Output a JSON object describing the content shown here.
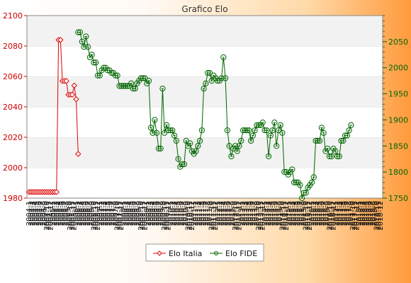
{
  "chart_data": {
    "type": "line",
    "title": "Grafico Elo",
    "xlabel": "",
    "ylabel_left": "",
    "ylabel_right": "",
    "left_axis": {
      "ylim": [
        1980,
        2100
      ],
      "ticks": [
        1980,
        2000,
        2020,
        2040,
        2060,
        2080,
        2100
      ],
      "color": "#cc0000"
    },
    "right_axis": {
      "ylim": [
        1750,
        2100
      ],
      "ticks": [
        1750,
        1800,
        1850,
        1900,
        1950,
        2000,
        2050
      ],
      "color": "#006600"
    },
    "grid": "horizontal bands",
    "legend_position": "bottom",
    "x_tick_labels": [
      "2004-1",
      "2004-2",
      "2004-3",
      "2004-4",
      "2004-5",
      "2004-6",
      "2004-7",
      "2004-8",
      "2004-9",
      "2004-10",
      "2004-11",
      "2004-12",
      "2005-1",
      "2005-2",
      "2005-3",
      "2005-4",
      "2005-5",
      "2005-6",
      "2005-7",
      "2005-8",
      "2005-9",
      "2005-10",
      "2005-11",
      "2005-12",
      "2006-1",
      "2006-2",
      "2006-3",
      "2006-4",
      "2006-5",
      "2006-6",
      "2006-7",
      "2006-8",
      "2006-9",
      "2006-10",
      "2006-11",
      "2006-12",
      "2007-1",
      "2007-2",
      "2007-3",
      "2007-4",
      "2007-5",
      "2007-6",
      "2007-7",
      "2007-8",
      "2007-9",
      "2007-10",
      "2007-11",
      "2007-12",
      "2008-1",
      "2008-2",
      "2008-3",
      "2008-4",
      "2008-5",
      "2008-6",
      "2008-7",
      "2008-8",
      "2008-9",
      "2008-10",
      "2008-11",
      "2008-12",
      "2009-1",
      "2009-2",
      "2009-3",
      "2009-4",
      "2009-5",
      "2009-6",
      "2009-7",
      "2009-8",
      "2009-9",
      "2009-10",
      "2009-11",
      "2009-12",
      "2010-1",
      "2010-2",
      "2010-3",
      "2010-4",
      "2010-5",
      "2010-6",
      "2010-7",
      "2010-8",
      "2010-9",
      "2010-10",
      "2010-11",
      "2010-12",
      "2011-1",
      "2011-2",
      "2011-3",
      "2011-4",
      "2011-5",
      "2011-6",
      "2011-7",
      "2011-8",
      "2011-9",
      "2011-10",
      "2011-11",
      "2011-12",
      "2012-1",
      "2012-2",
      "2012-3",
      "2012-4",
      "2012-5",
      "2012-6",
      "2012-7",
      "2012-8",
      "2012-9",
      "2012-10",
      "2012-11",
      "2012-12",
      "2013-1",
      "2013-2",
      "2013-3",
      "2013-4",
      "2013-5",
      "2013-6",
      "2013-7",
      "2013-8",
      "2013-9",
      "2013-10",
      "2013-11",
      "2013-12",
      "2014-1",
      "2014-2",
      "2014-3",
      "2014-4",
      "2014-5",
      "2014-6",
      "2014-7",
      "2014-8",
      "2014-9",
      "2014-10",
      "2014-11",
      "2014-12",
      "2015-1",
      "2015-2",
      "2015-3",
      "2015-4",
      "2015-5",
      "2015-6",
      "2015-7",
      "2015-8",
      "2015-9",
      "2015-10",
      "2015-11",
      "2015-12",
      "2016-1",
      "2016-2",
      "2016-3",
      "2016-4",
      "2016-5",
      "2016-6",
      "2016-7",
      "2016-8",
      "2016-9",
      "2016-10",
      "2016-11",
      "2016-12",
      "2017-1",
      "2017-2",
      "2017-3",
      "2017-4",
      "2017-5",
      "2017-6",
      "2017-7",
      "2017-8",
      "2017-9",
      "2017-10",
      "2017-11",
      "2017-12",
      "2018-1",
      "2018-2",
      "2018-3",
      "2018-4",
      "2018-5",
      "2018-6",
      "2018-7",
      "2018-8",
      "2018-9",
      "2018-10",
      "2018-11",
      "2018-12"
    ],
    "series": [
      {
        "name": "Elo Italia",
        "axis": "left",
        "color": "#dd0000",
        "marker": "diamond",
        "values": [
          1984,
          1984,
          1984,
          1984,
          1984,
          1984,
          1984,
          1984,
          1984,
          1984,
          1984,
          1984,
          1984,
          1984,
          1984,
          2084,
          2084,
          2057,
          2057,
          2057,
          2048,
          2048,
          2048,
          2054,
          2045,
          2009
        ]
      },
      {
        "name": "Elo FIDE",
        "axis": "right",
        "color": "#006600",
        "marker": "circle",
        "start_index": 25,
        "values": [
          2068,
          2068,
          2050,
          2040,
          2060,
          2040,
          2020,
          2025,
          2010,
          2010,
          1985,
          1985,
          1995,
          2000,
          2000,
          1995,
          1995,
          1990,
          1990,
          1985,
          1985,
          1965,
          1965,
          1965,
          1965,
          1965,
          1965,
          1970,
          1960,
          1960,
          1970,
          1975,
          1980,
          1980,
          1980,
          1970,
          1975,
          1885,
          1875,
          1900,
          1875,
          1845,
          1845,
          1960,
          1875,
          1890,
          1880,
          1880,
          1880,
          1870,
          1860,
          1825,
          1810,
          1815,
          1815,
          1860,
          1850,
          1855,
          1840,
          1835,
          1840,
          1850,
          1860,
          1880,
          1960,
          1970,
          1990,
          1990,
          1975,
          1985,
          1980,
          1975,
          1975,
          1980,
          2020,
          1980,
          1880,
          1850,
          1830,
          1845,
          1850,
          1840,
          1850,
          1860,
          1880,
          1880,
          1880,
          1880,
          1860,
          1870,
          1880,
          1890,
          1890,
          1890,
          1895,
          1880,
          1880,
          1830,
          1870,
          1880,
          1895,
          1850,
          1880,
          1890,
          1875,
          1800,
          1800,
          1795,
          1800,
          1805,
          1780,
          1780,
          1780,
          1775,
          1750,
          1760,
          1760,
          1770,
          1775,
          1780,
          1790,
          1860,
          1860,
          1860,
          1885,
          1875,
          1840,
          1845,
          1830,
          1830,
          1845,
          1840,
          1830,
          1830,
          1860,
          1860,
          1870,
          1870,
          1880,
          1890
        ]
      }
    ]
  }
}
